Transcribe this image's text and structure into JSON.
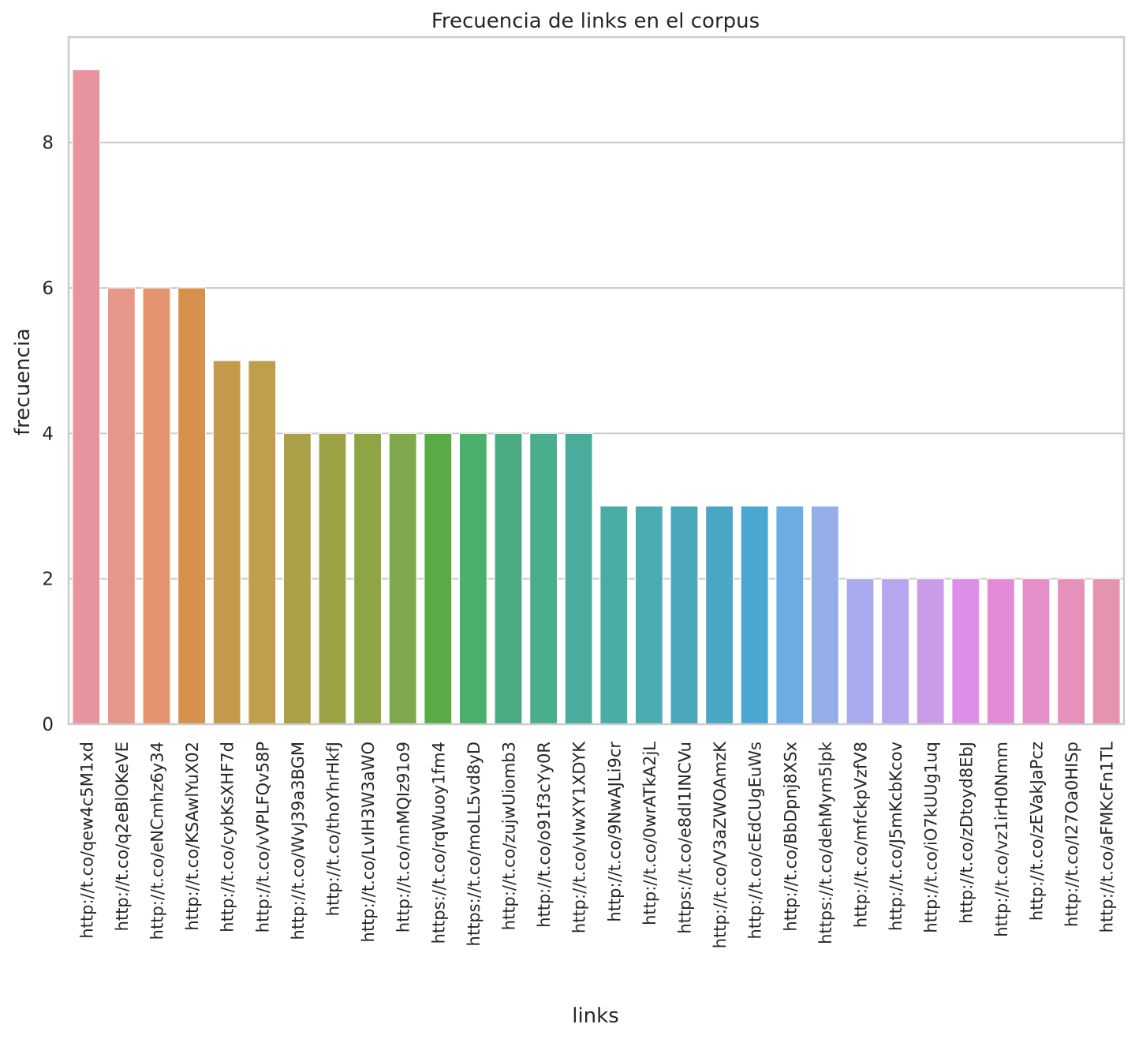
{
  "chart_data": {
    "type": "bar",
    "title": "Frecuencia de links en el corpus",
    "xlabel": "links",
    "ylabel": "frecuencia",
    "ylim": [
      0,
      9.45
    ],
    "yticks": [
      0,
      2,
      4,
      6,
      8
    ],
    "grid": "horizontal",
    "legend": "none",
    "categories": [
      "http://t.co/qew4c5M1xd",
      "http://t.co/q2eBlOKeVE",
      "http://t.co/eNCmhz6y34",
      "http://t.co/KSAwlYuX02",
      "http://t.co/cybKsXHF7d",
      "http://t.co/vVPLFQv58P",
      "http://t.co/WvJ39a3BGM",
      "http://t.co/thoYhrHkfJ",
      "http://t.co/LvIH3W3aWO",
      "http://t.co/nnMQIz91o9",
      "https://t.co/rqWuoy1fm4",
      "https://t.co/moLL5vd8yD",
      "http://t.co/zujwUiomb3",
      "http://t.co/o91f3cYy0R",
      "http://t.co/vIwXY1XDYK",
      "http://t.co/9NwAJLi9cr",
      "http://t.co/0wrATkA2jL",
      "https://t.co/e8dI1INCVu",
      "http://t.co/V3aZWOAmzK",
      "http://t.co/cEdCUgEuWs",
      "http://t.co/BbDpnj8XSx",
      "https://t.co/dehMym5lpk",
      "http://t.co/mfckpVzfV8",
      "http://t.co/J5mKcbKcov",
      "http://t.co/iO7kUUg1uq",
      "http://t.co/zDtoyd8EbJ",
      "http://t.co/vz1irH0Nmm",
      "http://t.co/zEVakJaPcz",
      "http://t.co/I27Oa0HISp",
      "http://t.co/aFMKcFn1TL"
    ],
    "values": [
      9,
      6,
      6,
      6,
      5,
      5,
      4,
      4,
      4,
      4,
      4,
      4,
      4,
      4,
      4,
      3,
      3,
      3,
      3,
      3,
      3,
      3,
      2,
      2,
      2,
      2,
      2,
      2,
      2,
      2
    ],
    "colors": [
      "#e8949e",
      "#e7978a",
      "#e5946f",
      "#d6924d",
      "#c49a4c",
      "#bf9e4c",
      "#a9a048",
      "#9ea247",
      "#8ea546",
      "#80a84c",
      "#5aab45",
      "#4ab06a",
      "#4aaa80",
      "#4aad8e",
      "#4aac9a",
      "#49ada6",
      "#4aabb0",
      "#4aa8ba",
      "#4aa6c4",
      "#4aa7d2",
      "#6aace3",
      "#95aee8",
      "#aaaaee",
      "#b5a6ee",
      "#cc9be8",
      "#dd8ee9",
      "#e38ad9",
      "#e68ec9",
      "#e790bb",
      "#e594af"
    ]
  }
}
